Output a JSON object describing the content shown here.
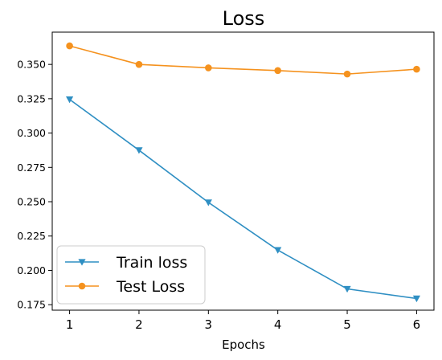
{
  "chart_data": {
    "type": "line",
    "title": "Loss",
    "xlabel": "Epochs",
    "ylabel": "",
    "x": [
      1,
      2,
      3,
      4,
      5,
      6
    ],
    "xlim": [
      0.75,
      6.25
    ],
    "ylim": [
      0.171,
      0.3735
    ],
    "yticks": [
      0.175,
      0.2,
      0.225,
      0.25,
      0.275,
      0.3,
      0.325,
      0.35
    ],
    "ytick_labels": [
      "0.175",
      "0.200",
      "0.225",
      "0.250",
      "0.275",
      "0.300",
      "0.325",
      "0.350"
    ],
    "xtick_labels": [
      "1",
      "2",
      "3",
      "4",
      "5",
      "6"
    ],
    "grid": false,
    "legend_position": "lower-left",
    "series": [
      {
        "name": "Train loss",
        "values": [
          0.3245,
          0.2875,
          0.2495,
          0.2148,
          0.1865,
          0.1795
        ],
        "color": "#2f8fc3",
        "marker": "triangle-down"
      },
      {
        "name": "Test Loss",
        "values": [
          0.3635,
          0.35,
          0.3475,
          0.3455,
          0.343,
          0.3465
        ],
        "color": "#f5921e",
        "marker": "circle"
      }
    ]
  }
}
